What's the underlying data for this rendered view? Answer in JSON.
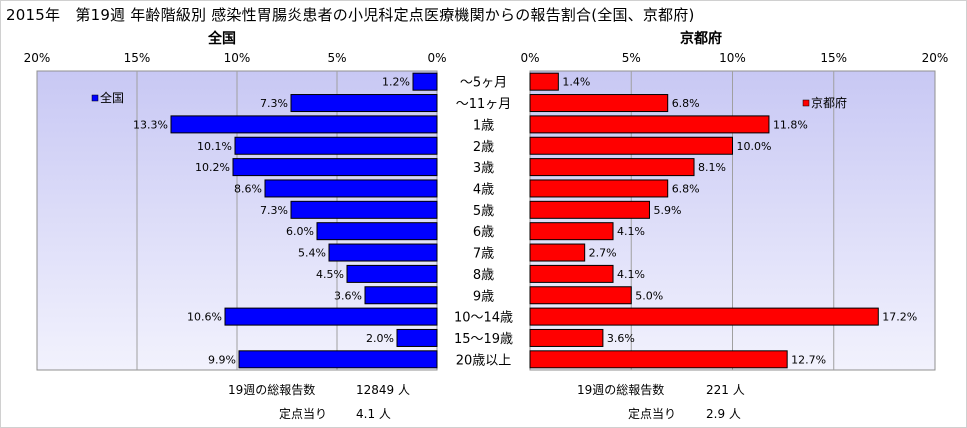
{
  "title": "2015年　第19週 年齢階級別 感染性胃腸炎患者の小児科定点医療機関からの報告割合(全国、京都府)",
  "chart_data": {
    "type": "bar",
    "orientation": "horizontal",
    "layout": "back-to-back",
    "categories": [
      "～5ヶ月",
      "～11ヶ月",
      "1歳",
      "2歳",
      "3歳",
      "4歳",
      "5歳",
      "6歳",
      "7歳",
      "8歳",
      "9歳",
      "10～14歳",
      "15～19歳",
      "20歳以上"
    ],
    "xticks": [
      "0%",
      "5%",
      "10%",
      "15%",
      "20%"
    ],
    "xlim": [
      0,
      20
    ],
    "grid": true,
    "panels": [
      {
        "title": "全国",
        "side": "left",
        "legend": "全国",
        "legend_position": "top-left",
        "color": "#0000ff",
        "values": [
          1.2,
          7.3,
          13.3,
          10.1,
          10.2,
          8.6,
          7.3,
          6.0,
          5.4,
          4.5,
          3.6,
          10.6,
          2.0,
          9.9
        ],
        "value_labels": [
          "1.2%",
          "7.3%",
          "13.3%",
          "10.1%",
          "10.2%",
          "8.6%",
          "7.3%",
          "6.0%",
          "5.4%",
          "4.5%",
          "3.6%",
          "10.6%",
          "2.0%",
          "9.9%"
        ]
      },
      {
        "title": "京都府",
        "side": "right",
        "legend": "京都府",
        "legend_position": "top-right",
        "color": "#ff0000",
        "values": [
          1.4,
          6.8,
          11.8,
          10.0,
          8.1,
          6.8,
          5.9,
          4.1,
          2.7,
          4.1,
          5.0,
          17.2,
          3.6,
          12.7
        ],
        "value_labels": [
          "1.4%",
          "6.8%",
          "11.8%",
          "10.0%",
          "8.1%",
          "6.8%",
          "5.9%",
          "4.1%",
          "2.7%",
          "4.1%",
          "5.0%",
          "17.2%",
          "3.6%",
          "12.7%"
        ]
      }
    ]
  },
  "footer": {
    "left_total_label": "19週の総報告数",
    "left_total_value": "12849 人",
    "left_per_label": "定点当り",
    "left_per_value": "4.1 人",
    "right_total_label": "19週の総報告数",
    "right_total_value": "221 人",
    "right_per_label": "定点当り",
    "right_per_value": "2.9 人"
  }
}
